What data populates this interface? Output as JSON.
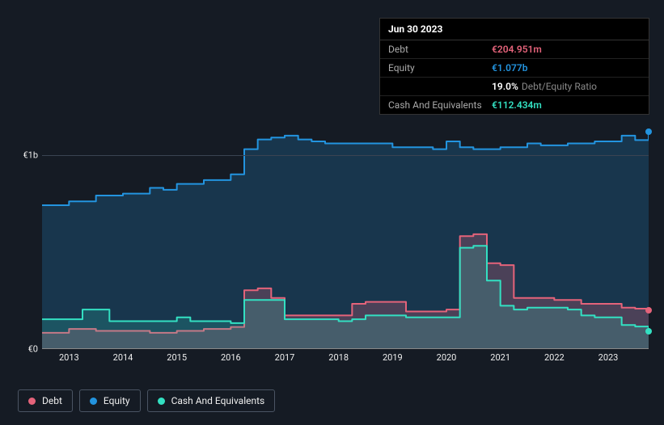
{
  "chart": {
    "type": "area",
    "background_color": "#151b24",
    "plot_background": "#151b24",
    "grid_color": "#3a4452",
    "currency_prefix": "€",
    "ylim": [
      0,
      1250000000
    ],
    "yticks": [
      {
        "value": 0,
        "label": "€0"
      },
      {
        "value": 1000000000,
        "label": "€1b"
      }
    ],
    "x_start": 2012.5,
    "x_end": 2023.75,
    "xticks": [
      2013,
      2014,
      2015,
      2016,
      2017,
      2018,
      2019,
      2020,
      2021,
      2022,
      2023
    ],
    "series": {
      "equity": {
        "label": "Equity",
        "color": "#2394df",
        "fill": "rgba(35,148,223,0.22)",
        "points": [
          [
            2012.5,
            740000000
          ],
          [
            2012.75,
            740000000
          ],
          [
            2013.0,
            760000000
          ],
          [
            2013.25,
            760000000
          ],
          [
            2013.5,
            790000000
          ],
          [
            2013.75,
            790000000
          ],
          [
            2014.0,
            800000000
          ],
          [
            2014.25,
            800000000
          ],
          [
            2014.5,
            830000000
          ],
          [
            2014.75,
            820000000
          ],
          [
            2015.0,
            850000000
          ],
          [
            2015.25,
            850000000
          ],
          [
            2015.5,
            870000000
          ],
          [
            2015.75,
            870000000
          ],
          [
            2016.0,
            900000000
          ],
          [
            2016.25,
            1030000000
          ],
          [
            2016.5,
            1080000000
          ],
          [
            2016.75,
            1090000000
          ],
          [
            2017.0,
            1100000000
          ],
          [
            2017.25,
            1080000000
          ],
          [
            2017.5,
            1070000000
          ],
          [
            2017.75,
            1060000000
          ],
          [
            2018.0,
            1060000000
          ],
          [
            2018.25,
            1060000000
          ],
          [
            2018.5,
            1060000000
          ],
          [
            2018.75,
            1060000000
          ],
          [
            2019.0,
            1040000000
          ],
          [
            2019.25,
            1040000000
          ],
          [
            2019.5,
            1040000000
          ],
          [
            2019.75,
            1030000000
          ],
          [
            2020.0,
            1070000000
          ],
          [
            2020.25,
            1040000000
          ],
          [
            2020.5,
            1030000000
          ],
          [
            2020.75,
            1030000000
          ],
          [
            2021.0,
            1040000000
          ],
          [
            2021.25,
            1040000000
          ],
          [
            2021.5,
            1060000000
          ],
          [
            2021.75,
            1050000000
          ],
          [
            2022.0,
            1050000000
          ],
          [
            2022.25,
            1060000000
          ],
          [
            2022.5,
            1060000000
          ],
          [
            2022.75,
            1070000000
          ],
          [
            2023.0,
            1070000000
          ],
          [
            2023.25,
            1100000000
          ],
          [
            2023.5,
            1077000000
          ],
          [
            2023.75,
            1120000000
          ]
        ]
      },
      "debt": {
        "label": "Debt",
        "color": "#e4637a",
        "fill": "rgba(228,99,122,0.25)",
        "points": [
          [
            2012.5,
            80000000
          ],
          [
            2012.75,
            80000000
          ],
          [
            2013.0,
            100000000
          ],
          [
            2013.25,
            100000000
          ],
          [
            2013.5,
            90000000
          ],
          [
            2013.75,
            90000000
          ],
          [
            2014.0,
            90000000
          ],
          [
            2014.25,
            90000000
          ],
          [
            2014.5,
            80000000
          ],
          [
            2014.75,
            80000000
          ],
          [
            2015.0,
            90000000
          ],
          [
            2015.25,
            90000000
          ],
          [
            2015.5,
            100000000
          ],
          [
            2015.75,
            100000000
          ],
          [
            2016.0,
            110000000
          ],
          [
            2016.25,
            300000000
          ],
          [
            2016.5,
            310000000
          ],
          [
            2016.75,
            260000000
          ],
          [
            2017.0,
            170000000
          ],
          [
            2017.25,
            170000000
          ],
          [
            2017.5,
            170000000
          ],
          [
            2017.75,
            170000000
          ],
          [
            2018.0,
            170000000
          ],
          [
            2018.25,
            230000000
          ],
          [
            2018.5,
            240000000
          ],
          [
            2018.75,
            240000000
          ],
          [
            2019.0,
            240000000
          ],
          [
            2019.25,
            190000000
          ],
          [
            2019.5,
            190000000
          ],
          [
            2019.75,
            190000000
          ],
          [
            2020.0,
            200000000
          ],
          [
            2020.25,
            580000000
          ],
          [
            2020.5,
            590000000
          ],
          [
            2020.75,
            440000000
          ],
          [
            2021.0,
            430000000
          ],
          [
            2021.25,
            260000000
          ],
          [
            2021.5,
            260000000
          ],
          [
            2021.75,
            260000000
          ],
          [
            2022.0,
            250000000
          ],
          [
            2022.25,
            250000000
          ],
          [
            2022.5,
            230000000
          ],
          [
            2022.75,
            230000000
          ],
          [
            2023.0,
            230000000
          ],
          [
            2023.25,
            210000000
          ],
          [
            2023.5,
            204951000
          ],
          [
            2023.75,
            200000000
          ]
        ]
      },
      "cash": {
        "label": "Cash And Equivalents",
        "color": "#33e0c2",
        "fill": "rgba(51,224,194,0.18)",
        "points": [
          [
            2012.5,
            150000000
          ],
          [
            2012.75,
            150000000
          ],
          [
            2013.0,
            150000000
          ],
          [
            2013.25,
            200000000
          ],
          [
            2013.5,
            200000000
          ],
          [
            2013.75,
            140000000
          ],
          [
            2014.0,
            140000000
          ],
          [
            2014.25,
            140000000
          ],
          [
            2014.5,
            140000000
          ],
          [
            2014.75,
            140000000
          ],
          [
            2015.0,
            160000000
          ],
          [
            2015.25,
            140000000
          ],
          [
            2015.5,
            140000000
          ],
          [
            2015.75,
            140000000
          ],
          [
            2016.0,
            130000000
          ],
          [
            2016.25,
            250000000
          ],
          [
            2016.5,
            250000000
          ],
          [
            2016.75,
            250000000
          ],
          [
            2017.0,
            150000000
          ],
          [
            2017.25,
            150000000
          ],
          [
            2017.5,
            150000000
          ],
          [
            2017.75,
            150000000
          ],
          [
            2018.0,
            140000000
          ],
          [
            2018.25,
            150000000
          ],
          [
            2018.5,
            170000000
          ],
          [
            2018.75,
            170000000
          ],
          [
            2019.0,
            170000000
          ],
          [
            2019.25,
            160000000
          ],
          [
            2019.5,
            160000000
          ],
          [
            2019.75,
            160000000
          ],
          [
            2020.0,
            160000000
          ],
          [
            2020.25,
            520000000
          ],
          [
            2020.5,
            530000000
          ],
          [
            2020.75,
            350000000
          ],
          [
            2021.0,
            220000000
          ],
          [
            2021.25,
            200000000
          ],
          [
            2021.5,
            210000000
          ],
          [
            2021.75,
            210000000
          ],
          [
            2022.0,
            210000000
          ],
          [
            2022.25,
            200000000
          ],
          [
            2022.5,
            170000000
          ],
          [
            2022.75,
            160000000
          ],
          [
            2023.0,
            160000000
          ],
          [
            2023.25,
            120000000
          ],
          [
            2023.5,
            112434000
          ],
          [
            2023.75,
            90000000
          ]
        ]
      }
    },
    "stroke_width": 2,
    "highlight_x": 2023.5
  },
  "tooltip": {
    "header": "Jun 30 2023",
    "rows": [
      {
        "label": "Debt",
        "value": "€204.951m",
        "color": "#e4637a"
      },
      {
        "label": "Equity",
        "value": "€1.077b",
        "color": "#2394df"
      },
      {
        "label": "",
        "value": "19.0%",
        "subtext": "Debt/Equity Ratio",
        "color": "#ffffff"
      },
      {
        "label": "Cash And Equivalents",
        "value": "€112.434m",
        "color": "#33e0c2"
      }
    ]
  },
  "legend": {
    "items": [
      {
        "key": "debt",
        "label": "Debt",
        "color": "#e4637a"
      },
      {
        "key": "equity",
        "label": "Equity",
        "color": "#2394df"
      },
      {
        "key": "cash",
        "label": "Cash And Equivalents",
        "color": "#33e0c2"
      }
    ]
  }
}
